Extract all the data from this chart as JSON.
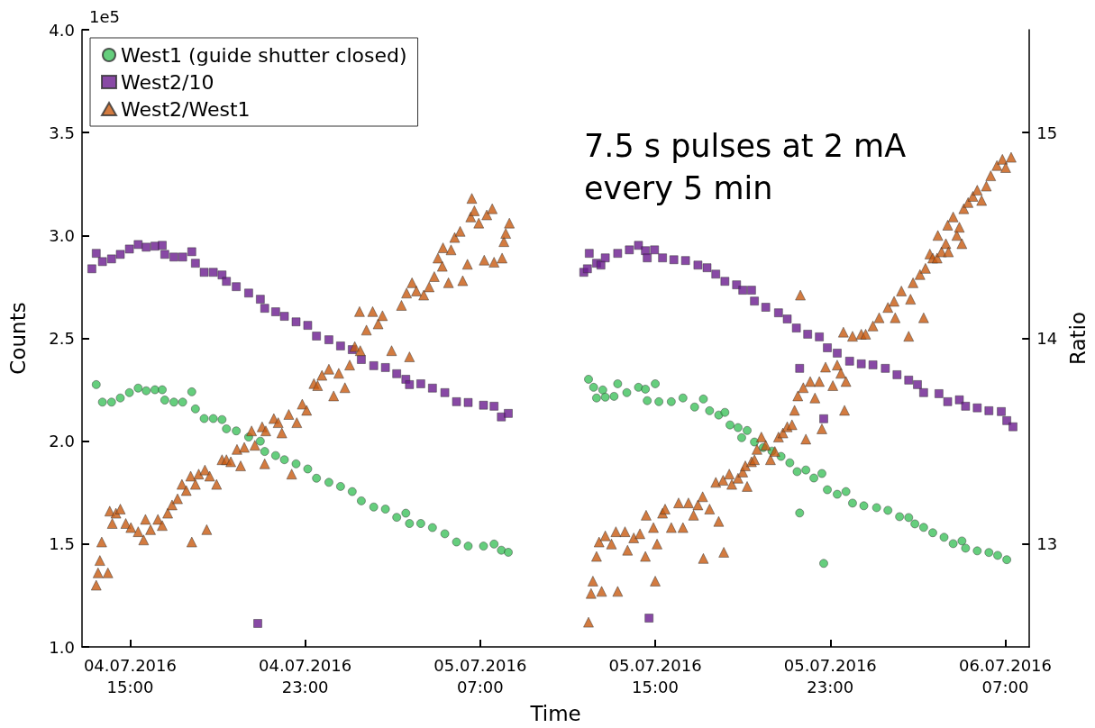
{
  "chart_data": {
    "type": "scatter",
    "xlabel": "Time",
    "ylabel": "Counts",
    "y2label": "Ratio",
    "annotations": [
      "1e5",
      "7.5 s pulses at 2 mA\nevery 5 min"
    ],
    "xlim": [
      "2016-07-04T12:48",
      "2016-07-06T08:06"
    ],
    "xticks": [
      {
        "value": "2016-07-04T15:00",
        "label": "04.07.2016\n15:00"
      },
      {
        "value": "2016-07-04T23:00",
        "label": "04.07.2016\n23:00"
      },
      {
        "value": "2016-07-05T07:00",
        "label": "05.07.2016\n07:00"
      },
      {
        "value": "2016-07-05T15:00",
        "label": "05.07.2016\n15:00"
      },
      {
        "value": "2016-07-05T23:00",
        "label": "05.07.2016\n23:00"
      },
      {
        "value": "2016-07-06T07:00",
        "label": "06.07.2016\n07:00"
      }
    ],
    "ylim": [
      1.0,
      4.0
    ],
    "yticks": [
      {
        "value": 1.0,
        "label": "1.0"
      },
      1.5,
      {
        "value": 2.0,
        "label": "2.0"
      },
      2.5,
      {
        "value": 3.0,
        "label": "3.0"
      },
      3.5,
      {
        "value": 4.0,
        "label": "4.0"
      }
    ],
    "y2lim": [
      12.5,
      15.5
    ],
    "y2ticks": [
      13,
      14,
      15
    ],
    "grid": false,
    "legend": "top left",
    "series": [
      {
        "name": "West1 (guide shutter closed)",
        "color": "#3fc25c",
        "marker": "circle",
        "x": [
          "2016-07-04T13:27",
          "2016-07-04T13:44",
          "2016-07-04T14:09",
          "2016-07-04T14:33",
          "2016-07-04T14:58",
          "2016-07-04T15:22",
          "2016-07-04T15:44",
          "2016-07-04T16:08",
          "2016-07-04T16:28",
          "2016-07-04T16:35",
          "2016-07-04T17:00",
          "2016-07-04T17:24",
          "2016-07-04T17:49",
          "2016-07-04T17:59",
          "2016-07-04T18:23",
          "2016-07-04T18:48",
          "2016-07-04T19:12",
          "2016-07-04T19:24",
          "2016-07-04T19:51",
          "2016-07-04T20:25",
          "2016-07-04T20:57",
          "2016-07-04T21:09",
          "2016-07-04T21:39",
          "2016-07-04T22:03",
          "2016-07-04T22:35",
          "2016-07-04T23:07",
          "2016-07-04T23:31",
          "2016-07-05T00:05",
          "2016-07-05T00:37",
          "2016-07-05T01:09",
          "2016-07-05T01:34",
          "2016-07-05T02:08",
          "2016-07-05T02:40",
          "2016-07-05T03:11",
          "2016-07-05T03:36",
          "2016-07-05T03:46",
          "2016-07-05T04:17",
          "2016-07-05T04:49",
          "2016-07-05T05:23",
          "2016-07-05T05:55",
          "2016-07-05T06:27",
          "2016-07-05T07:09",
          "2016-07-05T07:38",
          "2016-07-05T07:58",
          "2016-07-05T08:17",
          "2016-07-05T11:57",
          "2016-07-05T12:11",
          "2016-07-05T12:19",
          "2016-07-05T12:36",
          "2016-07-05T12:43",
          "2016-07-05T13:07",
          "2016-07-05T13:17",
          "2016-07-05T13:42",
          "2016-07-05T14:14",
          "2016-07-05T14:33",
          "2016-07-05T14:38",
          "2016-07-05T15:00",
          "2016-07-05T15:10",
          "2016-07-05T15:44",
          "2016-07-05T16:16",
          "2016-07-05T16:48",
          "2016-07-05T17:12",
          "2016-07-05T17:29",
          "2016-07-05T17:54",
          "2016-07-05T18:11",
          "2016-07-05T18:25",
          "2016-07-05T18:47",
          "2016-07-05T18:57",
          "2016-07-05T19:12",
          "2016-07-05T19:32",
          "2016-07-05T19:56",
          "2016-07-05T20:20",
          "2016-07-05T20:45",
          "2016-07-05T21:09",
          "2016-07-05T21:29",
          "2016-07-05T21:36",
          "2016-07-05T21:53",
          "2016-07-05T22:15",
          "2016-07-05T22:37",
          "2016-07-05T22:42",
          "2016-07-05T22:52",
          "2016-07-05T23:19",
          "2016-07-05T23:43",
          "2016-07-06T00:01",
          "2016-07-06T00:32",
          "2016-07-06T01:07",
          "2016-07-06T01:38",
          "2016-07-06T02:10",
          "2016-07-06T02:35",
          "2016-07-06T02:52",
          "2016-07-06T03:16",
          "2016-07-06T03:41",
          "2016-07-06T04:12",
          "2016-07-06T04:37",
          "2016-07-06T05:01",
          "2016-07-06T05:11",
          "2016-07-06T05:43",
          "2016-07-06T06:15",
          "2016-07-06T06:39",
          "2016-07-06T07:04"
        ],
        "values": [
          2.275,
          2.19,
          2.19,
          2.21,
          2.236,
          2.258,
          2.245,
          2.25,
          2.25,
          2.2,
          2.19,
          2.19,
          2.24,
          2.157,
          2.11,
          2.11,
          2.105,
          2.06,
          2.05,
          2.02,
          2.0,
          1.95,
          1.93,
          1.91,
          1.89,
          1.865,
          1.82,
          1.8,
          1.78,
          1.755,
          1.71,
          1.68,
          1.67,
          1.63,
          1.65,
          1.6,
          1.6,
          1.58,
          1.55,
          1.51,
          1.49,
          1.49,
          1.5,
          1.47,
          1.46,
          2.301,
          2.262,
          2.21,
          2.249,
          2.214,
          2.218,
          2.279,
          2.236,
          2.262,
          2.253,
          2.197,
          2.279,
          2.192,
          2.192,
          2.21,
          2.166,
          2.205,
          2.148,
          2.127,
          2.14,
          2.079,
          2.066,
          2.017,
          2.052,
          1.996,
          1.969,
          1.952,
          1.926,
          1.895,
          1.852,
          1.651,
          1.86,
          1.821,
          1.843,
          1.406,
          1.764,
          1.742,
          1.755,
          1.699,
          1.686,
          1.677,
          1.664,
          1.633,
          1.629,
          1.598,
          1.581,
          1.555,
          1.533,
          1.502,
          1.515,
          1.48,
          1.467,
          1.459,
          1.445,
          1.424
        ]
      },
      {
        "name": "West2/10",
        "color": "#6a1b8e",
        "marker": "square",
        "x": [
          "2016-07-04T13:15",
          "2016-07-04T13:27",
          "2016-07-04T13:44",
          "2016-07-04T14:09",
          "2016-07-04T14:33",
          "2016-07-04T14:58",
          "2016-07-04T15:22",
          "2016-07-04T15:44",
          "2016-07-04T16:08",
          "2016-07-04T16:28",
          "2016-07-04T16:35",
          "2016-07-04T17:00",
          "2016-07-04T17:24",
          "2016-07-04T17:49",
          "2016-07-04T17:59",
          "2016-07-04T18:23",
          "2016-07-04T18:48",
          "2016-07-04T19:12",
          "2016-07-04T19:24",
          "2016-07-04T19:51",
          "2016-07-04T20:25",
          "2016-07-04T20:50",
          "2016-07-04T20:57",
          "2016-07-04T21:09",
          "2016-07-04T21:39",
          "2016-07-04T22:03",
          "2016-07-04T22:35",
          "2016-07-04T23:07",
          "2016-07-04T23:31",
          "2016-07-05T00:05",
          "2016-07-05T00:37",
          "2016-07-05T01:09",
          "2016-07-05T01:34",
          "2016-07-05T02:08",
          "2016-07-05T02:40",
          "2016-07-05T03:11",
          "2016-07-05T03:36",
          "2016-07-05T03:46",
          "2016-07-05T04:17",
          "2016-07-05T04:49",
          "2016-07-05T05:23",
          "2016-07-05T05:55",
          "2016-07-05T06:27",
          "2016-07-05T07:09",
          "2016-07-05T07:38",
          "2016-07-05T07:58",
          "2016-07-05T08:17",
          "2016-07-05T11:44",
          "2016-07-05T11:54",
          "2016-07-05T11:59",
          "2016-07-05T12:19",
          "2016-07-05T12:31",
          "2016-07-05T12:43",
          "2016-07-05T13:17",
          "2016-07-05T13:49",
          "2016-07-05T14:14",
          "2016-07-05T14:33",
          "2016-07-05T14:38",
          "2016-07-05T14:43",
          "2016-07-05T14:58",
          "2016-07-05T15:20",
          "2016-07-05T15:51",
          "2016-07-05T16:23",
          "2016-07-05T16:57",
          "2016-07-05T17:22",
          "2016-07-05T17:46",
          "2016-07-05T18:11",
          "2016-07-05T18:43",
          "2016-07-05T19:00",
          "2016-07-05T19:24",
          "2016-07-05T19:32",
          "2016-07-05T20:03",
          "2016-07-05T20:38",
          "2016-07-05T21:02",
          "2016-07-05T21:27",
          "2016-07-05T21:36",
          "2016-07-05T21:58",
          "2016-07-05T22:30",
          "2016-07-05T22:42",
          "2016-07-05T22:52",
          "2016-07-05T23:19",
          "2016-07-05T23:53",
          "2016-07-06T00:25",
          "2016-07-06T00:57",
          "2016-07-06T01:31",
          "2016-07-06T02:03",
          "2016-07-06T02:35",
          "2016-07-06T02:59",
          "2016-07-06T03:16",
          "2016-07-06T03:58",
          "2016-07-06T04:22",
          "2016-07-06T04:54",
          "2016-07-06T05:11",
          "2016-07-06T05:43",
          "2016-07-06T06:15",
          "2016-07-06T06:49",
          "2016-07-06T07:04",
          "2016-07-06T07:21"
        ],
        "values": [
          2.838,
          2.913,
          2.873,
          2.886,
          2.908,
          2.934,
          2.956,
          2.943,
          2.948,
          2.952,
          2.908,
          2.895,
          2.895,
          2.921,
          2.865,
          2.821,
          2.821,
          2.808,
          2.777,
          2.751,
          2.72,
          1.114,
          2.69,
          2.646,
          2.629,
          2.607,
          2.58,
          2.563,
          2.511,
          2.493,
          2.463,
          2.445,
          2.397,
          2.367,
          2.358,
          2.328,
          2.301,
          2.275,
          2.279,
          2.258,
          2.236,
          2.192,
          2.188,
          2.175,
          2.17,
          2.118,
          2.135,
          2.821,
          2.838,
          2.913,
          2.865,
          2.856,
          2.891,
          2.913,
          2.93,
          2.952,
          2.926,
          2.891,
          1.14,
          2.93,
          2.891,
          2.882,
          2.878,
          2.856,
          2.843,
          2.812,
          2.777,
          2.76,
          2.734,
          2.734,
          2.681,
          2.651,
          2.624,
          2.594,
          2.55,
          2.354,
          2.52,
          2.507,
          2.109,
          2.454,
          2.428,
          2.389,
          2.376,
          2.371,
          2.354,
          2.323,
          2.297,
          2.275,
          2.236,
          2.231,
          2.192,
          2.201,
          2.17,
          2.162,
          2.148,
          2.144,
          2.1,
          2.07
        ]
      },
      {
        "name": "West2/West1",
        "color": "#c85a10",
        "marker": "triangle",
        "axis": "y2",
        "x": [
          "2016-07-04T13:27",
          "2016-07-04T13:32",
          "2016-07-04T13:37",
          "2016-07-04T13:42",
          "2016-07-04T13:59",
          "2016-07-04T14:04",
          "2016-07-04T14:11",
          "2016-07-04T14:21",
          "2016-07-04T14:33",
          "2016-07-04T14:48",
          "2016-07-04T15:02",
          "2016-07-04T15:22",
          "2016-07-04T15:37",
          "2016-07-04T15:42",
          "2016-07-04T15:56",
          "2016-07-04T16:16",
          "2016-07-04T16:28",
          "2016-07-04T16:43",
          "2016-07-04T16:55",
          "2016-07-04T17:10",
          "2016-07-04T17:22",
          "2016-07-04T17:34",
          "2016-07-04T17:46",
          "2016-07-04T17:49",
          "2016-07-04T17:59",
          "2016-07-04T18:08",
          "2016-07-04T18:25",
          "2016-07-04T18:30",
          "2016-07-04T18:38",
          "2016-07-04T18:57",
          "2016-07-04T19:12",
          "2016-07-04T19:24",
          "2016-07-04T19:36",
          "2016-07-04T19:53",
          "2016-07-04T20:03",
          "2016-07-04T20:13",
          "2016-07-04T20:33",
          "2016-07-04T20:42",
          "2016-07-04T21:02",
          "2016-07-04T21:09",
          "2016-07-04T21:12",
          "2016-07-04T21:34",
          "2016-07-04T21:46",
          "2016-07-04T21:56",
          "2016-07-04T22:15",
          "2016-07-04T22:23",
          "2016-07-04T22:37",
          "2016-07-04T22:52",
          "2016-07-04T23:04",
          "2016-07-04T23:24",
          "2016-07-04T23:34",
          "2016-07-04T23:46",
          "2016-07-05T00:05",
          "2016-07-05T00:18",
          "2016-07-05T00:32",
          "2016-07-05T00:49",
          "2016-07-05T01:02",
          "2016-07-05T01:16",
          "2016-07-05T01:29",
          "2016-07-05T01:31",
          "2016-07-05T01:48",
          "2016-07-05T02:05",
          "2016-07-05T02:20",
          "2016-07-05T02:32",
          "2016-07-05T02:57",
          "2016-07-05T03:24",
          "2016-07-05T03:38",
          "2016-07-05T03:46",
          "2016-07-05T03:53",
          "2016-07-05T04:05",
          "2016-07-05T04:25",
          "2016-07-05T04:40",
          "2016-07-05T04:54",
          "2016-07-05T05:04",
          "2016-07-05T05:16",
          "2016-07-05T05:18",
          "2016-07-05T05:33",
          "2016-07-05T05:40",
          "2016-07-05T05:50",
          "2016-07-05T06:05",
          "2016-07-05T06:12",
          "2016-07-05T06:25",
          "2016-07-05T06:34",
          "2016-07-05T06:37",
          "2016-07-05T06:44",
          "2016-07-05T06:56",
          "2016-07-05T07:11",
          "2016-07-05T07:18",
          "2016-07-05T07:33",
          "2016-07-05T07:38",
          "2016-07-05T08:00",
          "2016-07-05T08:05",
          "2016-07-05T08:10",
          "2016-07-05T08:20",
          "2016-07-05T11:57",
          "2016-07-05T12:04",
          "2016-07-05T12:09",
          "2016-07-05T12:19",
          "2016-07-05T12:26",
          "2016-07-05T12:33",
          "2016-07-05T12:43",
          "2016-07-05T13:00",
          "2016-07-05T13:12",
          "2016-07-05T13:17",
          "2016-07-05T13:37",
          "2016-07-05T13:44",
          "2016-07-05T14:01",
          "2016-07-05T14:18",
          "2016-07-05T14:33",
          "2016-07-05T14:35",
          "2016-07-05T14:55",
          "2016-07-05T15:00",
          "2016-07-05T15:05",
          "2016-07-05T15:20",
          "2016-07-05T15:27",
          "2016-07-05T15:44",
          "2016-07-05T16:04",
          "2016-07-05T16:16",
          "2016-07-05T16:31",
          "2016-07-05T16:45",
          "2016-07-05T16:57",
          "2016-07-05T17:10",
          "2016-07-05T17:12",
          "2016-07-05T17:29",
          "2016-07-05T17:46",
          "2016-07-05T17:54",
          "2016-07-05T18:06",
          "2016-07-05T18:08",
          "2016-07-05T18:23",
          "2016-07-05T18:30",
          "2016-07-05T18:47",
          "2016-07-05T19:00",
          "2016-07-05T19:07",
          "2016-07-05T19:12",
          "2016-07-05T19:24",
          "2016-07-05T19:32",
          "2016-07-05T19:39",
          "2016-07-05T19:51",
          "2016-07-05T20:03",
          "2016-07-05T20:16",
          "2016-07-05T20:28",
          "2016-07-05T20:38",
          "2016-07-05T20:50",
          "2016-07-05T21:02",
          "2016-07-05T21:15",
          "2016-07-05T21:22",
          "2016-07-05T21:31",
          "2016-07-05T21:38",
          "2016-07-05T21:46",
          "2016-07-05T21:53",
          "2016-07-05T22:05",
          "2016-07-05T22:18",
          "2016-07-05T22:30",
          "2016-07-05T22:37",
          "2016-07-05T22:47",
          "2016-07-05T23:07",
          "2016-07-05T23:19",
          "2016-07-05T23:29",
          "2016-07-05T23:36",
          "2016-07-05T23:39",
          "2016-07-05T23:43",
          "2016-07-06T00:01",
          "2016-07-06T00:25",
          "2016-07-06T00:37",
          "2016-07-06T00:57",
          "2016-07-06T01:14",
          "2016-07-06T01:38",
          "2016-07-06T01:55",
          "2016-07-06T01:58",
          "2016-07-06T02:15",
          "2016-07-06T02:35",
          "2016-07-06T02:40",
          "2016-07-06T02:47",
          "2016-07-06T03:06",
          "2016-07-06T03:16",
          "2016-07-06T03:21",
          "2016-07-06T03:33",
          "2016-07-06T03:41",
          "2016-07-06T03:53",
          "2016-07-06T03:55",
          "2016-07-06T04:05",
          "2016-07-06T04:17",
          "2016-07-06T04:22",
          "2016-07-06T04:24",
          "2016-07-06T04:37",
          "2016-07-06T04:47",
          "2016-07-06T04:54",
          "2016-07-06T05:01",
          "2016-07-06T05:06",
          "2016-07-06T05:18",
          "2016-07-06T05:31",
          "2016-07-06T05:43",
          "2016-07-06T05:55",
          "2016-07-06T06:08",
          "2016-07-06T06:20",
          "2016-07-06T06:37",
          "2016-07-06T06:52",
          "2016-07-06T07:01",
          "2016-07-06T07:16"
        ],
        "values": [
          12.8,
          12.86,
          12.92,
          13.01,
          12.86,
          13.16,
          13.1,
          13.15,
          13.17,
          13.1,
          13.08,
          13.06,
          13.02,
          13.12,
          13.07,
          13.12,
          13.09,
          13.15,
          13.19,
          13.22,
          13.29,
          13.26,
          13.33,
          13.01,
          13.29,
          13.34,
          13.36,
          13.07,
          13.33,
          13.29,
          13.41,
          13.41,
          13.4,
          13.46,
          13.38,
          13.47,
          13.55,
          13.48,
          13.57,
          13.39,
          13.55,
          13.61,
          13.59,
          13.54,
          13.63,
          13.34,
          13.59,
          13.68,
          13.65,
          13.78,
          13.77,
          13.82,
          13.85,
          13.72,
          13.83,
          13.76,
          13.87,
          13.96,
          14.13,
          13.94,
          14.04,
          14.13,
          14.07,
          14.11,
          13.94,
          14.16,
          14.22,
          13.91,
          14.27,
          14.23,
          14.21,
          14.25,
          14.3,
          14.39,
          14.35,
          14.44,
          14.27,
          14.43,
          14.49,
          14.52,
          14.28,
          14.36,
          14.59,
          14.68,
          14.62,
          14.56,
          14.38,
          14.6,
          14.63,
          14.37,
          14.39,
          14.47,
          14.51,
          14.56,
          12.62,
          12.76,
          12.82,
          12.94,
          13.01,
          12.77,
          13.04,
          13.0,
          13.06,
          12.77,
          13.06,
          12.97,
          13.03,
          13.05,
          12.94,
          13.14,
          13.08,
          12.82,
          13.0,
          13.15,
          13.17,
          13.08,
          13.2,
          13.08,
          13.2,
          13.14,
          13.19,
          13.23,
          12.93,
          13.17,
          13.3,
          13.11,
          13.31,
          12.96,
          13.34,
          13.29,
          13.32,
          13.35,
          13.38,
          13.28,
          13.4,
          13.41,
          13.46,
          13.52,
          13.48,
          13.41,
          13.45,
          13.52,
          13.54,
          13.57,
          13.58,
          13.65,
          13.72,
          14.21,
          13.76,
          13.51,
          13.79,
          13.71,
          13.79,
          13.56,
          13.86,
          13.77,
          13.87,
          13.83,
          14.03,
          13.65,
          13.79,
          14.01,
          14.02,
          14.02,
          14.06,
          14.1,
          14.15,
          14.18,
          14.1,
          14.23,
          14.01,
          14.19,
          14.27,
          14.31,
          14.1,
          14.34,
          14.41,
          14.39,
          14.39,
          14.5,
          14.42,
          14.46,
          14.55,
          14.42,
          14.59,
          14.5,
          14.54,
          14.46,
          14.63,
          14.66,
          14.69,
          14.72,
          14.67,
          14.74,
          14.79,
          14.84,
          14.87,
          14.83,
          14.88
        ]
      }
    ]
  }
}
